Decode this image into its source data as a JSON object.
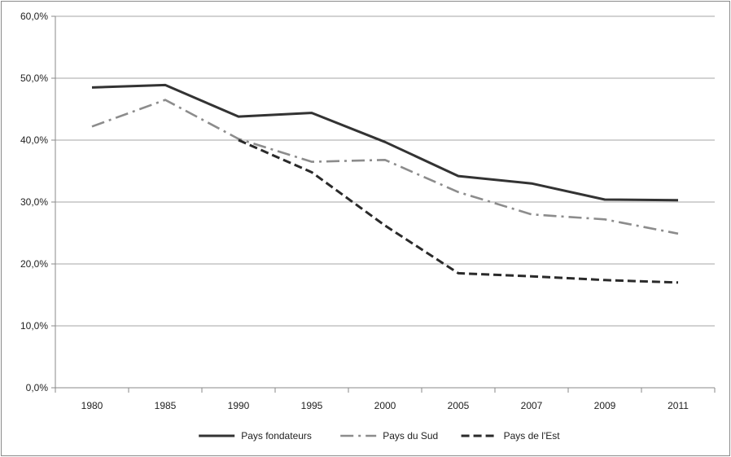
{
  "chart_data": {
    "type": "line",
    "categories": [
      "1980",
      "1985",
      "1990",
      "1995",
      "2000",
      "2005",
      "2007",
      "2009",
      "2011"
    ],
    "ylim": [
      0,
      60
    ],
    "yticks": [
      "0,0%",
      "10,0%",
      "20,0%",
      "30,0%",
      "40,0%",
      "50,0%",
      "60,0%"
    ],
    "grid": true,
    "legend_position": "bottom",
    "series": [
      {
        "name": "Pays fondateurs",
        "values": [
          48.5,
          48.9,
          43.8,
          44.4,
          39.7,
          34.2,
          33.0,
          30.4,
          30.3
        ],
        "color": "#333333",
        "style": "solid"
      },
      {
        "name": "Pays du Sud",
        "values": [
          42.2,
          46.5,
          40.2,
          36.5,
          36.8,
          31.6,
          28.0,
          27.2,
          24.9
        ],
        "color": "#8c8c8c",
        "style": "dash-dot"
      },
      {
        "name": "Pays de l'Est",
        "values": [
          null,
          null,
          40.0,
          34.8,
          26.2,
          18.5,
          18.0,
          17.4,
          17.0
        ],
        "color": "#2a2a2a",
        "style": "dashed"
      }
    ]
  }
}
